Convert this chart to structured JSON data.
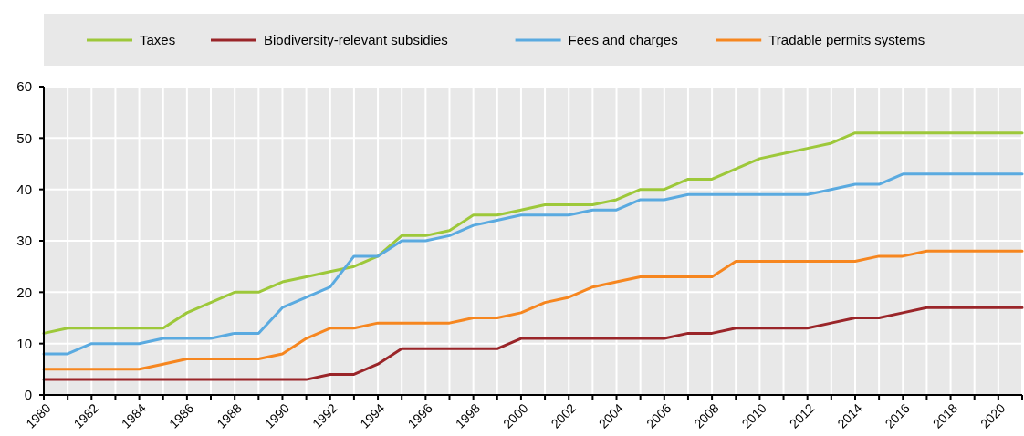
{
  "chart_data": {
    "type": "line",
    "x": [
      1980,
      1981,
      1982,
      1983,
      1984,
      1985,
      1986,
      1987,
      1988,
      1989,
      1990,
      1991,
      1992,
      1993,
      1994,
      1995,
      1996,
      1997,
      1998,
      1999,
      2000,
      2001,
      2002,
      2003,
      2004,
      2005,
      2006,
      2007,
      2008,
      2009,
      2010,
      2011,
      2012,
      2013,
      2014,
      2015,
      2016,
      2017,
      2018,
      2019,
      2020,
      2021
    ],
    "series": [
      {
        "name": "Taxes",
        "color": "#9dc83a",
        "values": [
          12,
          13,
          13,
          13,
          13,
          13,
          16,
          18,
          20,
          20,
          22,
          23,
          24,
          25,
          27,
          31,
          31,
          32,
          35,
          35,
          36,
          37,
          37,
          37,
          38,
          40,
          40,
          42,
          42,
          44,
          46,
          47,
          48,
          49,
          51,
          51,
          51,
          51,
          51,
          51,
          51,
          51
        ]
      },
      {
        "name": "Biodiversity-relevant subsidies",
        "color": "#9a2529",
        "values": [
          3,
          3,
          3,
          3,
          3,
          3,
          3,
          3,
          3,
          3,
          3,
          3,
          4,
          4,
          6,
          9,
          9,
          9,
          9,
          9,
          11,
          11,
          11,
          11,
          11,
          11,
          11,
          12,
          12,
          13,
          13,
          13,
          13,
          14,
          15,
          15,
          16,
          17,
          17,
          17,
          17,
          17
        ]
      },
      {
        "name": "Fees and charges",
        "color": "#5aaae0",
        "values": [
          8,
          8,
          10,
          10,
          10,
          11,
          11,
          11,
          12,
          12,
          17,
          19,
          21,
          27,
          27,
          30,
          30,
          31,
          33,
          34,
          35,
          35,
          35,
          36,
          36,
          38,
          38,
          39,
          39,
          39,
          39,
          39,
          39,
          40,
          41,
          41,
          43,
          43,
          43,
          43,
          43,
          43
        ]
      },
      {
        "name": "Tradable permits systems",
        "color": "#f6861f",
        "values": [
          5,
          5,
          5,
          5,
          5,
          6,
          7,
          7,
          7,
          7,
          8,
          11,
          13,
          13,
          14,
          14,
          14,
          14,
          15,
          15,
          16,
          18,
          19,
          21,
          22,
          23,
          23,
          23,
          23,
          26,
          26,
          26,
          26,
          26,
          26,
          27,
          27,
          28,
          28,
          28,
          28,
          28
        ]
      }
    ],
    "xlim": [
      1980,
      2021
    ],
    "xticks": [
      1980,
      {
        "value": 1981,
        "label": null
      },
      1982,
      {
        "value": 1983,
        "label": null
      },
      1984,
      {
        "value": 1985,
        "label": null
      },
      1986,
      {
        "value": 1987,
        "label": null
      },
      1988,
      {
        "value": 1989,
        "label": null
      },
      1990,
      {
        "value": 1991,
        "label": null
      },
      1992,
      {
        "value": 1993,
        "label": null
      },
      1994,
      {
        "value": 1995,
        "label": null
      },
      1996,
      {
        "value": 1997,
        "label": null
      },
      1998,
      {
        "value": 1999,
        "label": null
      },
      2000,
      {
        "value": 2001,
        "label": null
      },
      2002,
      {
        "value": 2003,
        "label": null
      },
      2004,
      {
        "value": 2005,
        "label": null
      },
      2006,
      {
        "value": 2007,
        "label": null
      },
      2008,
      {
        "value": 2009,
        "label": null
      },
      2010,
      {
        "value": 2011,
        "label": null
      },
      2012,
      {
        "value": 2013,
        "label": null
      },
      2014,
      {
        "value": 2015,
        "label": null
      },
      2016,
      {
        "value": 2017,
        "label": null
      },
      2018,
      {
        "value": 2019,
        "label": null
      },
      2020,
      {
        "value": 2021,
        "label": null
      }
    ],
    "ylim": [
      0,
      60
    ],
    "yticks": [
      0,
      10,
      20,
      30,
      40,
      50,
      60
    ],
    "grid": true,
    "legend": "top",
    "marker": "none",
    "line_style": "solid"
  }
}
